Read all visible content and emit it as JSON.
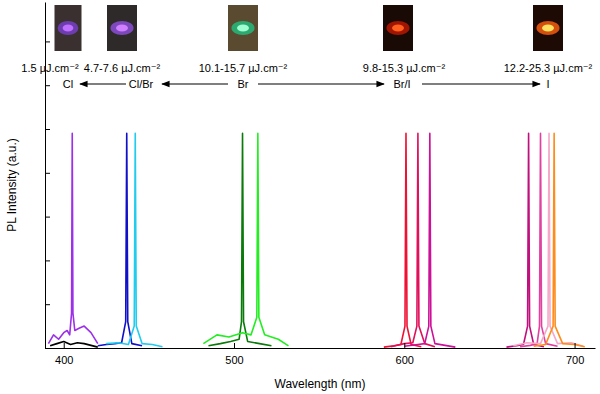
{
  "chart_data": {
    "type": "line",
    "xlabel": "Wavelength (nm)",
    "ylabel": "PL Intensity (a.u.)",
    "xlim": [
      389,
      712
    ],
    "ylim": [
      0,
      7.9
    ],
    "xticks": [
      400,
      500,
      600,
      700
    ],
    "yticks": [
      0,
      1,
      2,
      3,
      4,
      5,
      6,
      7
    ],
    "tick_labels": "x",
    "grid": false,
    "annotations": [
      {
        "fluence": "1.5 µJ.cm⁻²",
        "label": "Cl"
      },
      {
        "fluence": "4.7-7.6 µJ.cm⁻²",
        "label": "Cl/Br"
      },
      {
        "fluence": "10.1-15.7 µJ.cm⁻²",
        "label": "Br"
      },
      {
        "fluence": "9.8-15.3 µJ.cm⁻²",
        "label": "Br/I"
      },
      {
        "fluence": "12.2-25.3 µJ.cm⁻²",
        "label": "I"
      }
    ],
    "series": [
      {
        "color": "#000000",
        "x": [
          392,
          396,
          400,
          404,
          408,
          412,
          416,
          420
        ],
        "values": [
          0.05,
          0.1,
          0.15,
          0.08,
          0.12,
          0.1,
          0.06,
          0.02
        ]
      },
      {
        "color": "#9b30e8",
        "x": [
          391,
          394,
          397,
          400,
          402,
          403.5,
          404.6,
          405,
          405.4,
          406.5,
          409,
          412,
          416,
          420
        ],
        "values": [
          0.1,
          0.3,
          0.2,
          0.35,
          0.4,
          0.3,
          0.8,
          4.9,
          0.8,
          0.4,
          0.45,
          0.5,
          0.35,
          0.1
        ]
      },
      {
        "color": "#1010c8",
        "x": [
          420,
          425,
          430,
          434,
          436.4,
          437,
          437.6,
          440,
          446
        ],
        "values": [
          0.05,
          0.08,
          0.1,
          0.12,
          0.6,
          4.9,
          0.6,
          0.1,
          0.05
        ]
      },
      {
        "color": "#22ccee",
        "x": [
          425,
          432,
          438,
          441.4,
          442,
          442.6,
          446,
          452,
          458
        ],
        "values": [
          0.1,
          0.12,
          0.08,
          0.5,
          4.9,
          0.5,
          0.1,
          0.08,
          0.03
        ]
      },
      {
        "color": "#0a7a0a",
        "x": [
          485,
          492,
          498,
          503,
          504.4,
          505,
          505.6,
          508,
          515,
          522
        ],
        "values": [
          0.05,
          0.1,
          0.15,
          0.2,
          0.6,
          4.9,
          0.6,
          0.15,
          0.1,
          0.05
        ]
      },
      {
        "color": "#22ee22",
        "x": [
          482,
          490,
          497,
          505,
          510,
          513.4,
          514,
          514.6,
          518,
          526,
          532
        ],
        "values": [
          0.1,
          0.3,
          0.25,
          0.35,
          0.3,
          0.7,
          4.9,
          0.7,
          0.3,
          0.2,
          0.05
        ]
      },
      {
        "color": "#ee1133",
        "x": [
          588,
          594,
          598,
          600.4,
          601,
          601.6,
          604,
          610
        ],
        "values": [
          0.02,
          0.05,
          0.08,
          0.5,
          4.9,
          0.5,
          0.08,
          0.03
        ]
      },
      {
        "color": "#e0105a",
        "x": [
          592,
          600,
          605,
          607.4,
          608,
          608.6,
          612,
          618
        ],
        "values": [
          0.03,
          0.1,
          0.12,
          0.5,
          4.9,
          0.5,
          0.1,
          0.03
        ]
      },
      {
        "color": "#cc1199",
        "x": [
          600,
          608,
          612,
          614.4,
          615,
          615.6,
          618,
          624,
          630
        ],
        "values": [
          0.04,
          0.08,
          0.1,
          0.5,
          4.9,
          0.5,
          0.1,
          0.06,
          0.02
        ]
      },
      {
        "color": "#c0107e",
        "x": [
          660,
          666,
          670,
          672.4,
          673,
          673.6,
          676,
          682
        ],
        "values": [
          0.02,
          0.05,
          0.08,
          0.5,
          4.9,
          0.5,
          0.08,
          0.03
        ]
      },
      {
        "color": "#e040a0",
        "x": [
          668,
          674,
          678,
          679.4,
          680,
          680.6,
          683,
          690
        ],
        "values": [
          0.03,
          0.06,
          0.1,
          0.5,
          4.9,
          0.5,
          0.1,
          0.04
        ]
      },
      {
        "color": "#f5a8c8",
        "x": [
          664,
          672,
          680,
          684.4,
          685,
          685.6,
          690,
          698,
          705
        ],
        "values": [
          0.05,
          0.12,
          0.1,
          0.5,
          4.9,
          0.5,
          0.1,
          0.12,
          0.04
        ]
      },
      {
        "color": "#ff8c1a",
        "x": [
          676,
          683,
          687.4,
          688,
          688.6,
          693,
          700,
          706
        ],
        "values": [
          0.04,
          0.08,
          0.5,
          4.9,
          0.5,
          0.1,
          0.08,
          0.03
        ]
      }
    ]
  }
}
